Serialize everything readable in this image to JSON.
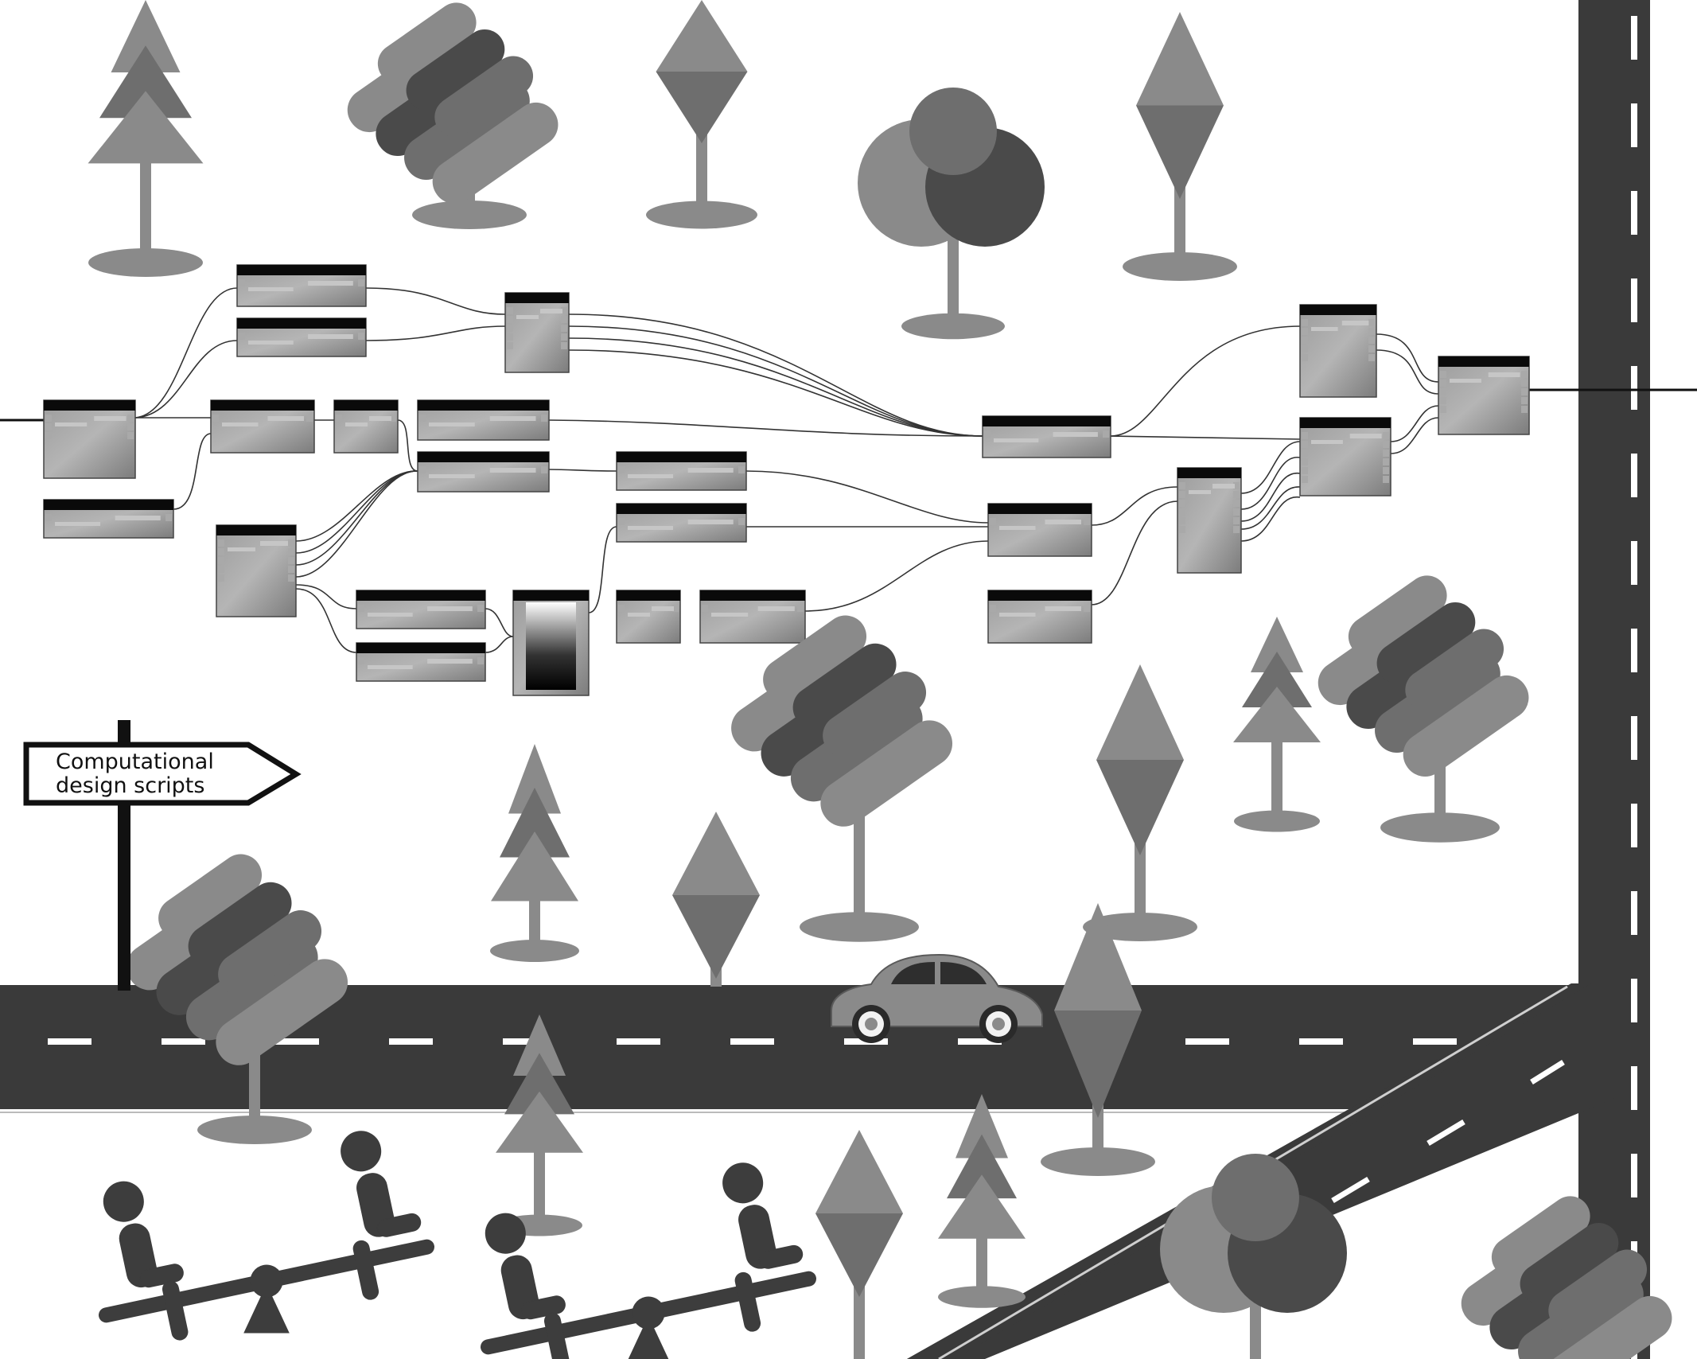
{
  "signpost": {
    "line1": "Computational",
    "line2": "design scripts"
  },
  "colors": {
    "road": "#3a3a3a",
    "road_dash": "#ffffff",
    "tree_light": "#8a8a8a",
    "tree_mid": "#6e6e6e",
    "tree_dark": "#4a4a4a",
    "node_header": "#0a0a0a",
    "node_body": "#8f8f8f",
    "figure": "#3d3d3d"
  },
  "icons": {
    "signpost": "signpost-arrow-icon",
    "car": "vintage-car-icon",
    "seesaw": "seesaw-children-icon",
    "tree_pine": "pine-tree-icon",
    "tree_round": "round-tree-icon",
    "tree_diamond": "diamond-tree-icon",
    "tree_pill": "pill-cluster-tree-icon"
  }
}
